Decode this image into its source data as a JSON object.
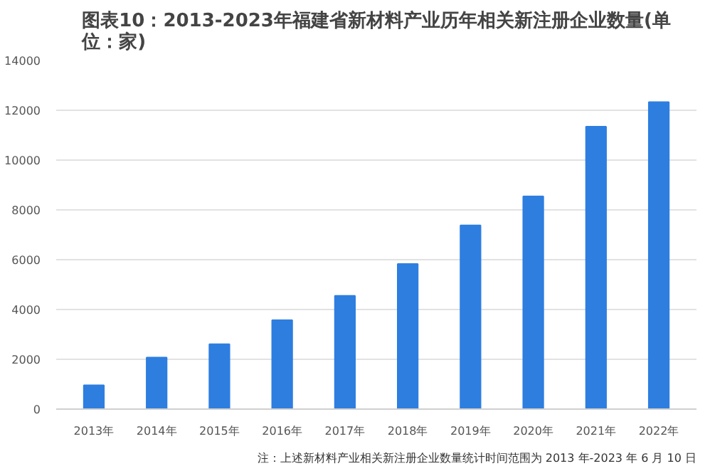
{
  "chart_data": {
    "type": "bar",
    "title": "图表10：2013-2023年福建省新材料产业历年相关新注册企业数量(单位：家)",
    "categories": [
      "2013年",
      "2014年",
      "2015年",
      "2016年",
      "2017年",
      "2018年",
      "2019年",
      "2020年",
      "2021年",
      "2022年"
    ],
    "values": [
      960,
      2070,
      2610,
      3570,
      4550,
      5830,
      7380,
      8540,
      11340,
      12330
    ],
    "color": "#2e7ee0",
    "ylim": [
      0,
      14000
    ],
    "yticks": [
      0,
      2000,
      4000,
      6000,
      8000,
      10000,
      12000,
      14000
    ],
    "grid": "y",
    "annotations": [
      "注：上述新材料产业相关新注册企业数量统计时间范围为 2013 年-2023 年 6 月 10 日"
    ]
  }
}
